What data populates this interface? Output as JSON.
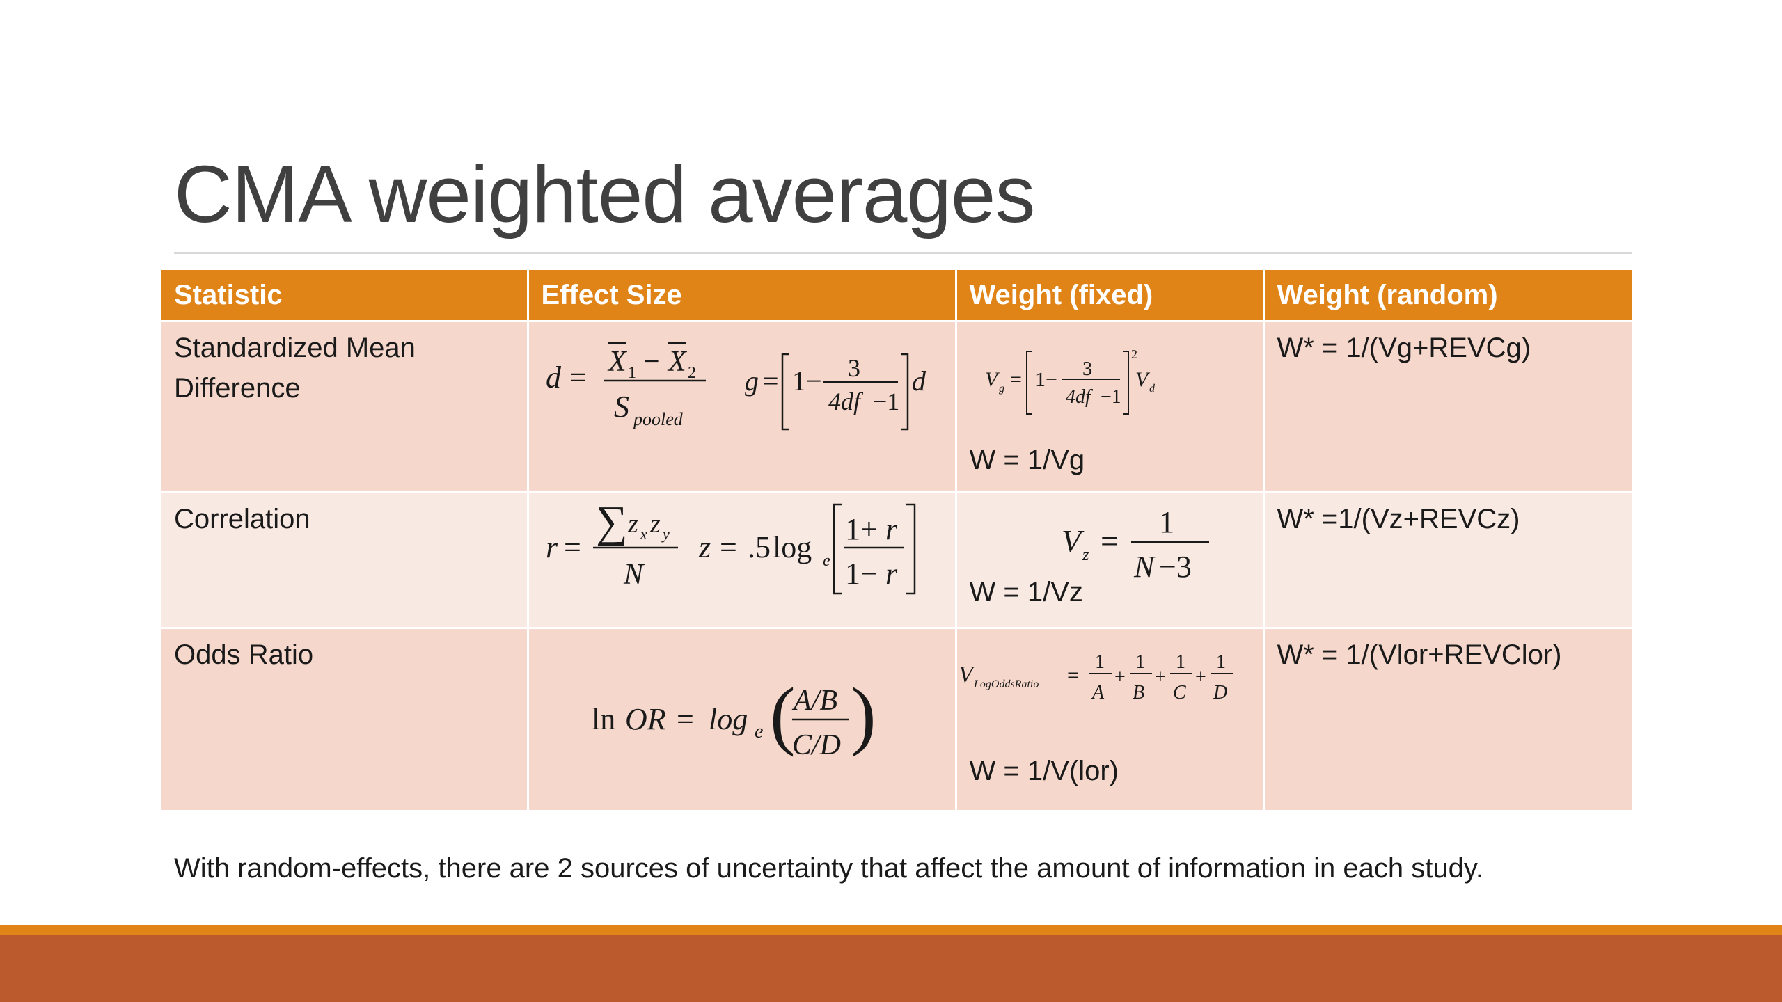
{
  "slide": {
    "title": "CMA weighted averages",
    "footnote": "With random-effects, there are 2 sources of uncertainty that affect the amount of information in each study."
  },
  "table": {
    "headers": [
      "Statistic",
      "Effect Size",
      "Weight (fixed)",
      "Weight (random)"
    ],
    "rows": [
      {
        "statistic": "Standardized Mean Difference",
        "fixed_weight": "W = 1/Vg",
        "random_weight": "W* = 1/(Vg+REVCg)"
      },
      {
        "statistic": "Correlation",
        "fixed_weight": "W = 1/Vz",
        "random_weight": "W* =1/(Vz+REVCz)"
      },
      {
        "statistic": "Odds Ratio",
        "fixed_weight": "W = 1/V(lor)",
        "random_weight": "W* = 1/(Vlor+REVClor)"
      }
    ]
  },
  "colors": {
    "header": "#e08418",
    "row_dark": "#f5d8cb",
    "row_light": "#f9e9e3",
    "band_top": "#e08418",
    "band_bottom": "#bb5a2c"
  }
}
